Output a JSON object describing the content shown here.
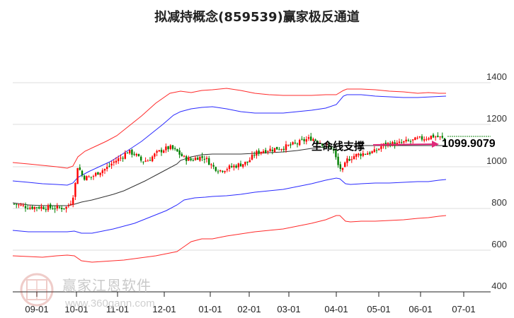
{
  "title": "拟减持概念(859539)赢家极反通道",
  "annotation": {
    "label": "生命线支撑",
    "value": "1099.9079"
  },
  "watermark": {
    "text": "赢家江恩软件",
    "url": "www.360gann.com"
  },
  "colors": {
    "up_candle": "#ff0000",
    "down_candle": "#008000",
    "outer_band": "#ff2020",
    "inner_band": "#2020ff",
    "life_line": "#333333",
    "arrow": "#e0287a",
    "support_dashed": "#008000"
  },
  "chart_data": {
    "type": "candlestick",
    "title": "拟减持概念(859539)赢家极反通道",
    "xlabel": "",
    "ylabel": "",
    "ylim": [
      400,
      1450
    ],
    "yticks": [
      400,
      600,
      800,
      1000,
      1200,
      1400
    ],
    "xticks": [
      "09-01",
      "10-01",
      "11-01",
      "12-01",
      "01-01",
      "02-01",
      "03-01",
      "04-01",
      "05-01",
      "06-01",
      "07-01"
    ],
    "grid": "horizontal",
    "support_level": 1099.9079,
    "series": [
      {
        "name": "outer_upper_band",
        "color": "red",
        "x": [
          "08-10",
          "09-01",
          "10-01",
          "10-15",
          "11-01",
          "11-15",
          "12-01",
          "12-15",
          "01-01",
          "01-15",
          "02-01",
          "03-01",
          "03-15",
          "04-01",
          "04-15",
          "05-01",
          "06-01",
          "06-25"
        ],
        "values": [
          1010,
          995,
          985,
          1110,
          1170,
          1260,
          1350,
          1345,
          1360,
          1350,
          1320,
          1320,
          1320,
          1355,
          1360,
          1350,
          1330,
          1335
        ]
      },
      {
        "name": "inner_upper_band",
        "color": "blue",
        "x": [
          "08-10",
          "09-01",
          "10-01",
          "10-15",
          "11-01",
          "11-15",
          "12-01",
          "12-15",
          "01-01",
          "01-15",
          "02-01",
          "03-01",
          "03-15",
          "04-01",
          "04-15",
          "05-01",
          "06-01",
          "06-25"
        ],
        "values": [
          925,
          915,
          910,
          960,
          1030,
          1100,
          1165,
          1185,
          1190,
          1180,
          1165,
          1165,
          1175,
          1210,
          1230,
          1225,
          1215,
          1220
        ]
      },
      {
        "name": "life_line",
        "color": "black",
        "x": [
          "08-10",
          "09-01",
          "10-01",
          "10-15",
          "11-01",
          "11-15",
          "12-01",
          "12-15",
          "01-01",
          "01-15",
          "02-01",
          "03-01",
          "03-15",
          "04-01",
          "04-15",
          "05-01",
          "06-01",
          "06-25"
        ],
        "values": [
          820,
          805,
          810,
          850,
          890,
          950,
          1010,
          1050,
          1060,
          1055,
          1055,
          1070,
          1085,
          1100,
          1100,
          1100,
          1100,
          1100
        ]
      },
      {
        "name": "inner_lower_band",
        "color": "blue",
        "x": [
          "08-10",
          "09-01",
          "10-01",
          "10-15",
          "11-01",
          "11-15",
          "12-01",
          "12-15",
          "01-01",
          "01-15",
          "02-01",
          "03-01",
          "03-15",
          "04-01",
          "04-15",
          "05-01",
          "06-01",
          "06-25"
        ],
        "values": [
          690,
          680,
          680,
          665,
          680,
          720,
          770,
          835,
          870,
          870,
          880,
          900,
          930,
          960,
          905,
          910,
          915,
          930
        ]
      },
      {
        "name": "outer_lower_band",
        "color": "red",
        "x": [
          "08-10",
          "09-01",
          "10-01",
          "10-15",
          "11-01",
          "11-15",
          "12-01",
          "12-15",
          "01-01",
          "01-15",
          "02-01",
          "03-01",
          "03-15",
          "04-01",
          "04-15",
          "05-01",
          "06-01",
          "06-25"
        ],
        "values": [
          575,
          570,
          575,
          545,
          550,
          560,
          580,
          630,
          650,
          665,
          690,
          710,
          740,
          780,
          740,
          745,
          760,
          775
        ]
      },
      {
        "name": "price_close",
        "color": "candles",
        "x": [
          "08-10",
          "09-01",
          "09-20",
          "10-01",
          "10-05",
          "10-10",
          "10-20",
          "11-01",
          "11-15",
          "11-25",
          "12-01",
          "12-15",
          "01-01",
          "01-10",
          "01-20",
          "02-01",
          "02-15",
          "03-01",
          "03-15",
          "03-25",
          "04-01",
          "04-05",
          "04-15",
          "05-01",
          "05-15",
          "06-01",
          "06-15",
          "06-25"
        ],
        "values": [
          820,
          800,
          805,
          900,
          1020,
          950,
          960,
          1000,
          1090,
          1020,
          1080,
          1110,
          1040,
          990,
          975,
          1020,
          1070,
          1100,
          1130,
          1140,
          1120,
          980,
          1050,
          1080,
          1110,
          1130,
          1140,
          1125
        ]
      }
    ]
  }
}
